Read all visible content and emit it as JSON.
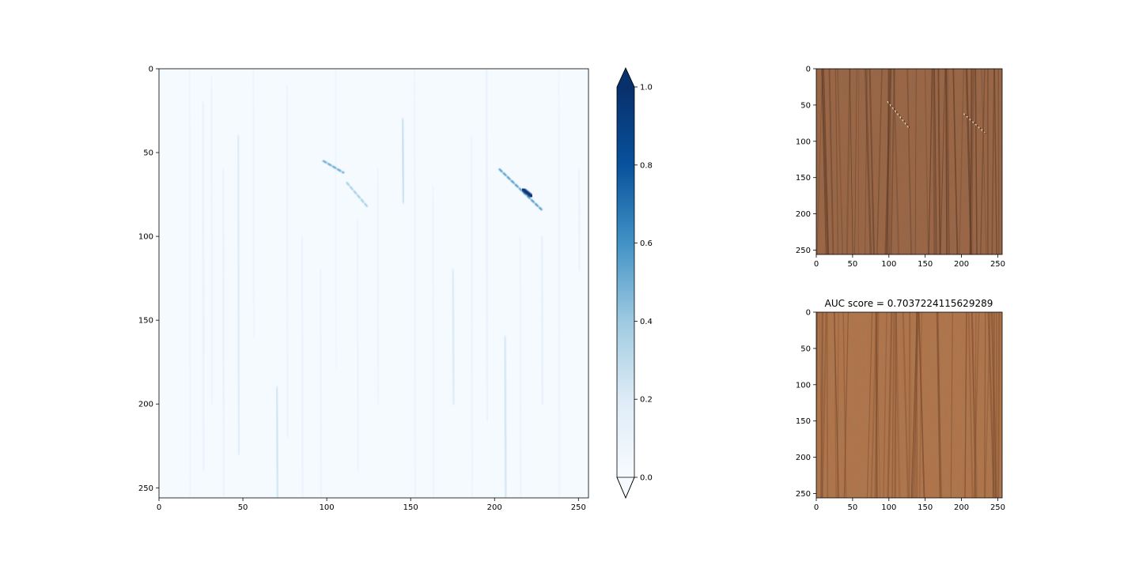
{
  "chart_data": [
    {
      "type": "heatmap",
      "role": "anomaly map",
      "colormap": "Blues",
      "xlim": [
        0,
        256
      ],
      "ylim": [
        256,
        0
      ],
      "xticks": [
        0,
        50,
        100,
        150,
        200,
        250
      ],
      "yticks": [
        0,
        50,
        100,
        150,
        200,
        250
      ],
      "title": "",
      "xlabel": "",
      "ylabel": "",
      "grid": false,
      "streaks": [
        {
          "x": 18,
          "y0": 0,
          "y1": 256,
          "v": 0.12
        },
        {
          "x": 26,
          "y0": 20,
          "y1": 240,
          "v": 0.18
        },
        {
          "x": 31,
          "y0": 5,
          "y1": 200,
          "v": 0.14
        },
        {
          "x": 38,
          "y0": 60,
          "y1": 256,
          "v": 0.16
        },
        {
          "x": 47,
          "y0": 40,
          "y1": 230,
          "v": 0.24
        },
        {
          "x": 56,
          "y0": 0,
          "y1": 160,
          "v": 0.12
        },
        {
          "x": 70,
          "y0": 190,
          "y1": 256,
          "v": 0.3
        },
        {
          "x": 76,
          "y0": 10,
          "y1": 220,
          "v": 0.14
        },
        {
          "x": 85,
          "y0": 100,
          "y1": 256,
          "v": 0.16
        },
        {
          "x": 96,
          "y0": 120,
          "y1": 256,
          "v": 0.13
        },
        {
          "x": 105,
          "y0": 0,
          "y1": 180,
          "v": 0.1
        },
        {
          "x": 118,
          "y0": 90,
          "y1": 240,
          "v": 0.15
        },
        {
          "x": 130,
          "y0": 60,
          "y1": 200,
          "v": 0.14
        },
        {
          "x": 145,
          "y0": 30,
          "y1": 80,
          "v": 0.34
        },
        {
          "x": 152,
          "y0": 0,
          "y1": 256,
          "v": 0.12
        },
        {
          "x": 163,
          "y0": 70,
          "y1": 256,
          "v": 0.14
        },
        {
          "x": 175,
          "y0": 120,
          "y1": 200,
          "v": 0.26
        },
        {
          "x": 186,
          "y0": 40,
          "y1": 256,
          "v": 0.12
        },
        {
          "x": 195,
          "y0": 0,
          "y1": 210,
          "v": 0.16
        },
        {
          "x": 206,
          "y0": 160,
          "y1": 256,
          "v": 0.3
        },
        {
          "x": 215,
          "y0": 100,
          "y1": 256,
          "v": 0.14
        },
        {
          "x": 228,
          "y0": 100,
          "y1": 200,
          "v": 0.2
        },
        {
          "x": 238,
          "y0": 0,
          "y1": 256,
          "v": 0.12
        },
        {
          "x": 250,
          "y0": 60,
          "y1": 120,
          "v": 0.18
        }
      ],
      "defects": [
        {
          "x0": 98,
          "y0": 55,
          "x1": 110,
          "y1": 62,
          "v": 0.55
        },
        {
          "x0": 112,
          "y0": 68,
          "x1": 124,
          "y1": 82,
          "v": 0.4
        },
        {
          "x0": 203,
          "y0": 60,
          "x1": 228,
          "y1": 84,
          "v": 0.6
        },
        {
          "x0": 217,
          "y0": 72,
          "x1": 222,
          "y1": 76,
          "v": 0.95
        }
      ]
    },
    {
      "type": "colorbar",
      "colormap": "Blues",
      "range": [
        0.0,
        1.0
      ],
      "extend": "both",
      "ticks": [
        "0.0",
        "0.2",
        "0.4",
        "0.6",
        "0.8",
        "1.0"
      ]
    },
    {
      "type": "image",
      "role": "test image",
      "title": "",
      "xlim": [
        0,
        256
      ],
      "ylim": [
        256,
        0
      ],
      "xticks": [
        0,
        50,
        100,
        150,
        200,
        250
      ],
      "yticks": [
        0,
        50,
        100,
        150,
        200,
        250
      ],
      "base_color": "#9c6646",
      "dark_color": "#5e3a26",
      "defects": [
        {
          "x0": 98,
          "y0": 45,
          "x1": 128,
          "y1": 82
        },
        {
          "x0": 203,
          "y0": 62,
          "x1": 232,
          "y1": 88
        }
      ]
    },
    {
      "type": "image",
      "role": "reconstruction",
      "title": "AUC score = 0.7037224115629289",
      "xlim": [
        0,
        256
      ],
      "ylim": [
        256,
        0
      ],
      "xticks": [
        0,
        50,
        100,
        150,
        200,
        250
      ],
      "yticks": [
        0,
        50,
        100,
        150,
        200,
        250
      ],
      "base_color": "#b0744a",
      "dark_color": "#7a4a2c"
    }
  ]
}
